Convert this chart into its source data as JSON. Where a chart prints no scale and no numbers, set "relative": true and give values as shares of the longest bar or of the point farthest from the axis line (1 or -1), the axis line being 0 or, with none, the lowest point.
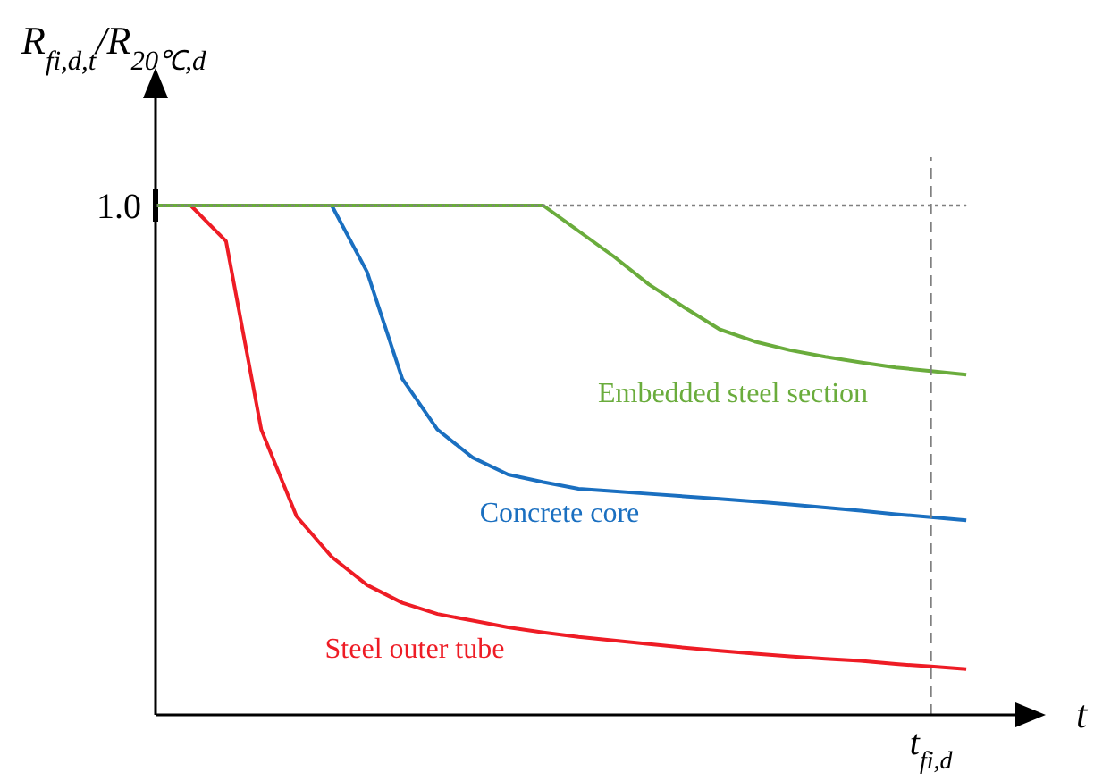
{
  "chart_data": {
    "type": "line",
    "relative": true,
    "ylabel": "R$_{fi,d,t}$/R$_{20℃,d}$",
    "xlabel": "t",
    "marker": "none",
    "line_style": "solid",
    "categories": [
      null,
      null,
      null,
      null,
      null,
      null,
      null,
      null,
      null,
      null,
      null,
      null,
      null,
      null,
      null,
      null,
      null,
      null,
      null,
      null,
      null,
      null,
      null,
      null,
      null,
      null
    ],
    "ref_lines": [
      {
        "axis": "y",
        "value": 1,
        "label": "1.0",
        "line_style": "dotted",
        "color": "#808080"
      }
    ],
    "annotations": [
      "t$_{fi,d}$"
    ],
    "series": [
      {
        "name": "Steel outer tube",
        "color": "#ee1c25",
        "values": [
          1,
          1,
          0.93,
          0.56,
          0.39,
          0.31,
          0.255,
          0.22,
          0.198,
          0.185,
          0.172,
          0.162,
          0.153,
          0.146,
          0.139,
          0.132,
          0.126,
          0.12,
          0.115,
          0.11,
          0.106,
          0.1,
          0.095,
          0.09,
          null,
          null
        ]
      },
      {
        "name": "Concrete core",
        "color": "#1a6fc0",
        "values": [
          null,
          null,
          null,
          null,
          null,
          1,
          0.87,
          0.66,
          0.56,
          0.505,
          0.472,
          0.457,
          0.444,
          0.439,
          0.434,
          0.429,
          0.424,
          0.419,
          0.413,
          0.407,
          0.401,
          0.394,
          0.388,
          0.382,
          null,
          null
        ]
      },
      {
        "name": "Embedded steel section",
        "color": "#6aac3c",
        "values": [
          1,
          1,
          1,
          1,
          1,
          1,
          1,
          1,
          1,
          1,
          1,
          1,
          0.95,
          0.9,
          0.845,
          0.8,
          0.757,
          0.733,
          0.716,
          0.703,
          0.692,
          0.682,
          0.675,
          0.668,
          null,
          null
        ]
      }
    ]
  }
}
